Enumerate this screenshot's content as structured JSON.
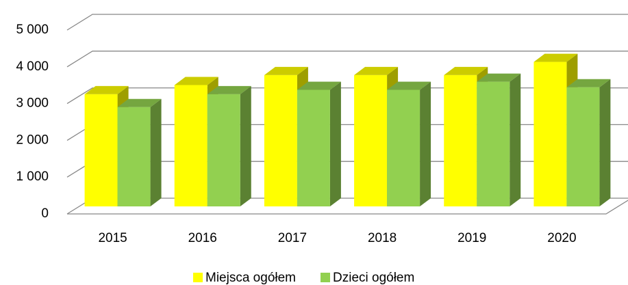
{
  "chart_data": {
    "type": "bar3d",
    "categories": [
      "2015",
      "2016",
      "2017",
      "2018",
      "2019",
      "2020"
    ],
    "series": [
      {
        "name": "Miejsca ogółem",
        "color": "#ffff00",
        "values": [
          3050,
          3300,
          3570,
          3570,
          3570,
          3930
        ]
      },
      {
        "name": "Dzieci ogółem",
        "color": "#92d050",
        "values": [
          2700,
          3050,
          3170,
          3170,
          3390,
          3240
        ]
      }
    ],
    "ylim": [
      0,
      5000
    ],
    "yticks": [
      0,
      {
        "value": 1000,
        "label": "1 000"
      },
      {
        "value": 2000,
        "label": "2 000"
      },
      {
        "value": 3000,
        "label": "3 000"
      },
      {
        "value": 4000,
        "label": "4 000"
      },
      {
        "value": 5000,
        "label": "5 000"
      }
    ],
    "grid": true,
    "legend": "bottom"
  }
}
